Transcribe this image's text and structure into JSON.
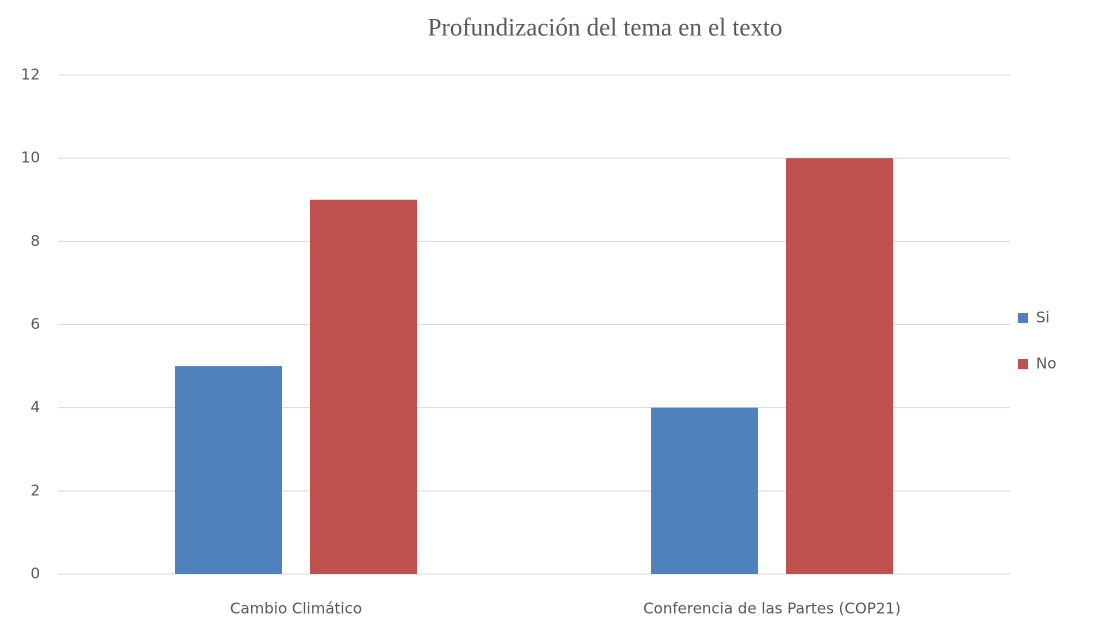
{
  "chart_data": {
    "type": "bar",
    "title": "Profundización del tema en el texto",
    "categories": [
      "Cambio Climático",
      "Conferencia de las Partes (COP21)"
    ],
    "series": [
      {
        "name": "Si",
        "color": "#4f81bd",
        "values": [
          5,
          4
        ]
      },
      {
        "name": "No",
        "color": "#c0504d",
        "values": [
          9,
          10
        ]
      }
    ],
    "ylim": [
      0,
      12
    ],
    "yticks": [
      0,
      2,
      4,
      6,
      8,
      10,
      12
    ],
    "grid": true,
    "legend": "right"
  }
}
